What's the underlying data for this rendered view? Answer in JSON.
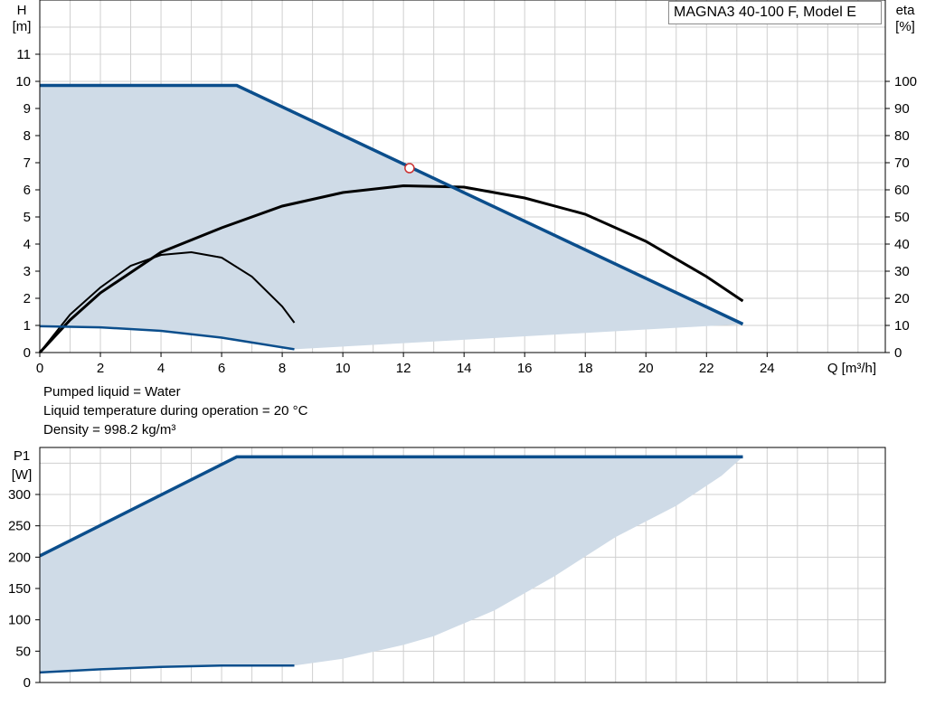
{
  "notes": {
    "liquid": "Pumped liquid = Water",
    "temperature": "Liquid temperature during operation = 20 °C",
    "density": "Density = 998.2 kg/m³"
  },
  "colors": {
    "curve_blue": "#0b4e8c",
    "area_fill": "#cfdbe7",
    "grid": "#cfcfcf",
    "eff_curve": "#000000",
    "point_marker": "#cc3333"
  },
  "chart_data": [
    {
      "type": "line",
      "title": "MAGNA3 40-100 F, Model E",
      "xlabel": "Q [m³/h]",
      "ylabel_line1": "H",
      "ylabel_line2": "[m]",
      "y2label_line1": "eta",
      "y2label_line2": "[%]",
      "xlim": [
        0,
        27.9
      ],
      "ylim": [
        0,
        13
      ],
      "y2lim": [
        0,
        130
      ],
      "xticks": [
        0,
        2,
        4,
        6,
        8,
        10,
        12,
        14,
        16,
        18,
        20,
        22,
        24
      ],
      "yticks": [
        0,
        1,
        2,
        3,
        4,
        5,
        6,
        7,
        8,
        9,
        10,
        11
      ],
      "y2ticks": [
        0,
        10,
        20,
        30,
        40,
        50,
        60,
        70,
        80,
        90,
        100
      ],
      "grid": true,
      "series": [
        {
          "role": "max_head",
          "x": [
            0,
            6.5,
            23.2
          ],
          "y": [
            9.85,
            9.85,
            1.05
          ]
        },
        {
          "role": "min_head",
          "x": [
            0,
            2,
            4,
            6,
            8.4
          ],
          "y": [
            0.97,
            0.93,
            0.8,
            0.55,
            0.12
          ]
        },
        {
          "role": "area_lower_bound",
          "x": [
            8.4,
            23.2
          ],
          "y": [
            0.12,
            1.05
          ]
        },
        {
          "role": "eff_max",
          "axis": "y2",
          "x": [
            0,
            1,
            2,
            4,
            6,
            8,
            10,
            12,
            14,
            16,
            18,
            20,
            22,
            23.2
          ],
          "y": [
            0,
            12,
            22,
            37,
            46,
            54,
            59,
            61.5,
            61,
            57,
            51,
            41,
            28,
            19
          ]
        },
        {
          "role": "eff_min",
          "axis": "y2",
          "x": [
            0,
            1,
            2,
            3,
            4,
            5,
            6,
            7,
            8,
            8.4
          ],
          "y": [
            0,
            14,
            24,
            32,
            36,
            37,
            35,
            28,
            17,
            11
          ]
        }
      ],
      "duty_point": {
        "x": 12.2,
        "y": 6.8
      }
    },
    {
      "type": "line",
      "ylabel_line1": "P1",
      "ylabel_line2": "[W]",
      "xlim": [
        0,
        27.9
      ],
      "ylim": [
        0,
        375
      ],
      "yticks": [
        0,
        50,
        100,
        150,
        200,
        250,
        300
      ],
      "grid": true,
      "series": [
        {
          "role": "max_power",
          "x": [
            0,
            6.5,
            23.2
          ],
          "y": [
            202,
            360,
            360
          ]
        },
        {
          "role": "min_power",
          "x": [
            0,
            2,
            4,
            6,
            8.4
          ],
          "y": [
            16,
            21,
            25,
            27,
            27
          ]
        },
        {
          "role": "area_lower_bound",
          "x": [
            8.4,
            10,
            12,
            13,
            15,
            17,
            19,
            21,
            22.5,
            23.2
          ],
          "y": [
            27,
            38,
            60,
            74,
            115,
            170,
            232,
            282,
            330,
            360
          ]
        }
      ]
    }
  ]
}
